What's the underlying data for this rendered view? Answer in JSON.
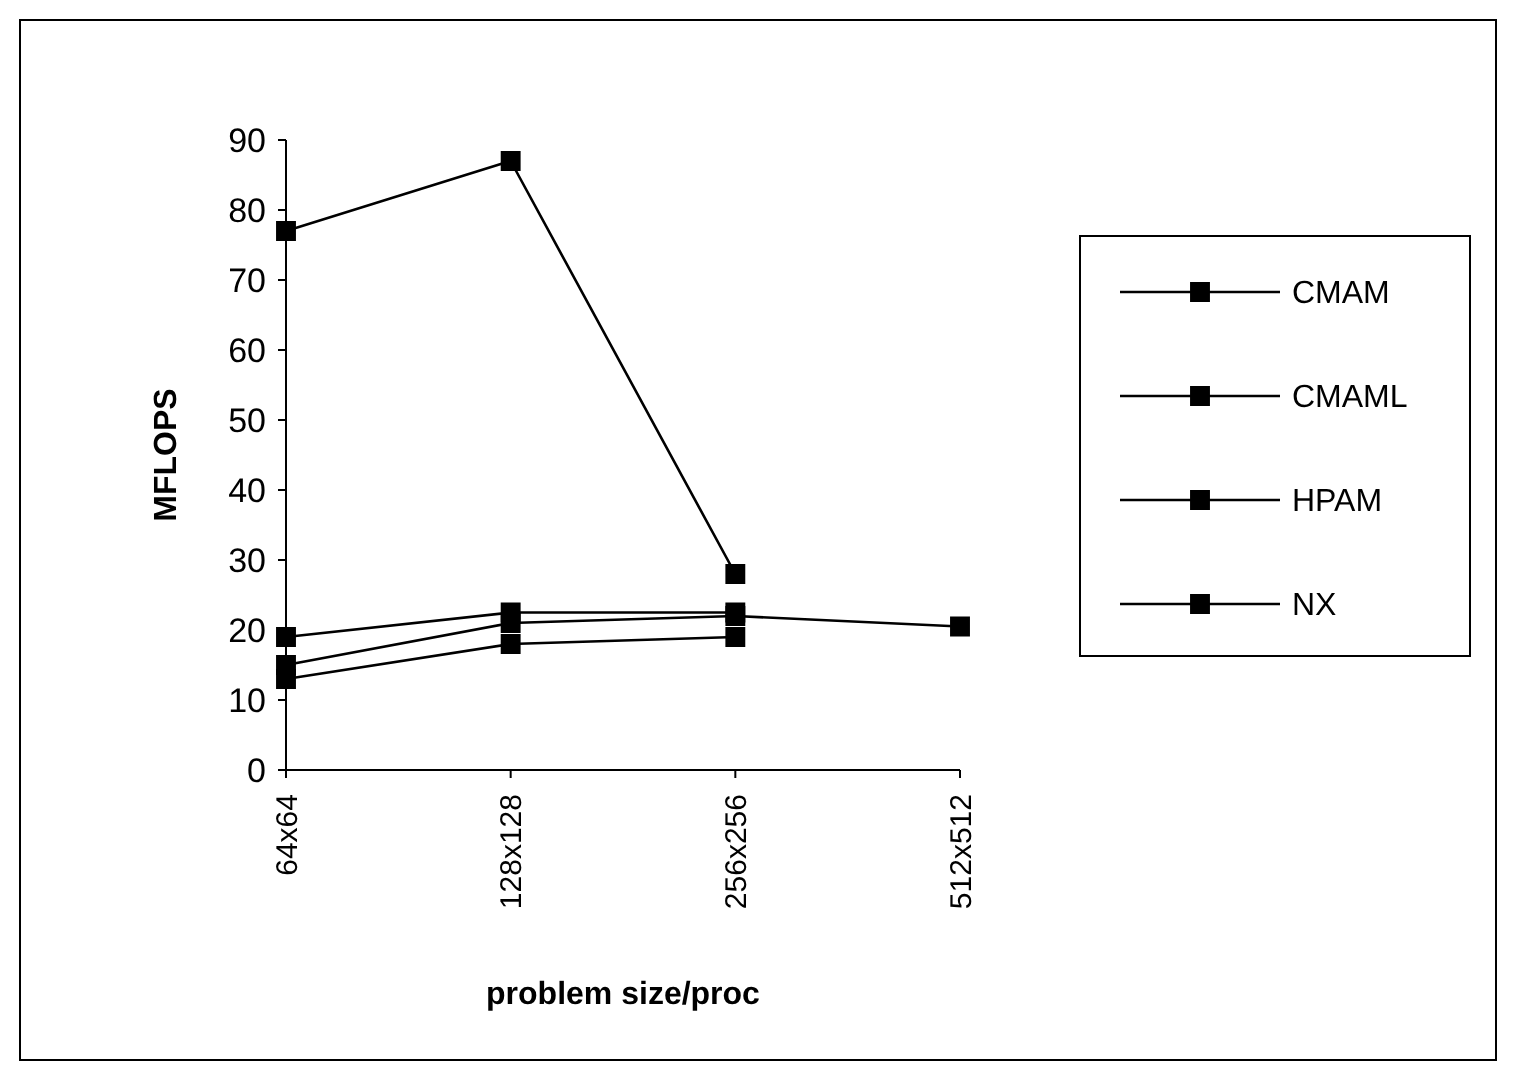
{
  "chart_data": {
    "type": "line",
    "xlabel": "problem size/proc",
    "ylabel": "MFLOPS",
    "categories": [
      "64x64",
      "128x128",
      "256x256",
      "512x512"
    ],
    "series": [
      {
        "name": "CMAM",
        "color": "#000000",
        "values": [
          77,
          87,
          28,
          null
        ]
      },
      {
        "name": "CMAML",
        "color": "#000000",
        "values": [
          15,
          21,
          22,
          20.5
        ]
      },
      {
        "name": "HPAM",
        "color": "#000000",
        "values": [
          19,
          22.5,
          22.5,
          null
        ]
      },
      {
        "name": "NX",
        "color": "#000000",
        "values": [
          13,
          18,
          19,
          null
        ]
      }
    ],
    "ylim": [
      0,
      90
    ],
    "yticks": [
      0,
      10,
      20,
      30,
      40,
      50,
      60,
      70,
      80,
      90
    ],
    "grid": false,
    "legend": "right",
    "marker": "square",
    "line_style": "solid"
  }
}
